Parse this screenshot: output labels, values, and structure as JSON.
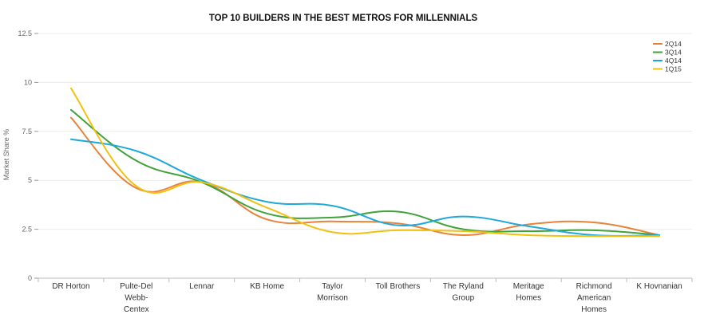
{
  "chart_data": {
    "type": "line",
    "title": "TOP 10 BUILDERS IN THE BEST METROS FOR MILLENNIALS",
    "xlabel": "",
    "ylabel": "Market Share %",
    "ylim": [
      0,
      12.5
    ],
    "yticks": [
      "0",
      "2.5",
      "5",
      "7.5",
      "10",
      "12.5"
    ],
    "ytick_values": [
      0,
      2.5,
      5,
      7.5,
      10,
      12.5
    ],
    "grid": true,
    "legend_position": "top-right",
    "categories": [
      [
        "DR Horton"
      ],
      [
        "Pulte-Del",
        "Webb-",
        "Centex"
      ],
      [
        "Lennar"
      ],
      [
        "KB Home"
      ],
      [
        "Taylor",
        "Morrison"
      ],
      [
        "Toll Brothers"
      ],
      [
        "The Ryland",
        "Group"
      ],
      [
        "Meritage",
        "Homes"
      ],
      [
        "Richmond",
        "American",
        "Homes"
      ],
      [
        "K Hovnanian"
      ]
    ],
    "series": [
      {
        "name": "2Q14",
        "color": "#e8833a",
        "values": [
          8.2,
          4.6,
          4.9,
          3.0,
          2.9,
          2.8,
          2.2,
          2.75,
          2.85,
          2.2
        ]
      },
      {
        "name": "3Q14",
        "color": "#3fa33a",
        "values": [
          8.6,
          6.0,
          4.9,
          3.3,
          3.1,
          3.4,
          2.5,
          2.4,
          2.45,
          2.2
        ]
      },
      {
        "name": "4Q14",
        "color": "#1ea8dc",
        "values": [
          7.1,
          6.5,
          5.0,
          3.9,
          3.7,
          2.7,
          3.15,
          2.65,
          2.2,
          2.2
        ]
      },
      {
        "name": "1Q15",
        "color": "#f2c10f",
        "values": [
          9.7,
          4.7,
          4.9,
          3.6,
          2.35,
          2.45,
          2.4,
          2.2,
          2.15,
          2.15
        ]
      }
    ]
  }
}
